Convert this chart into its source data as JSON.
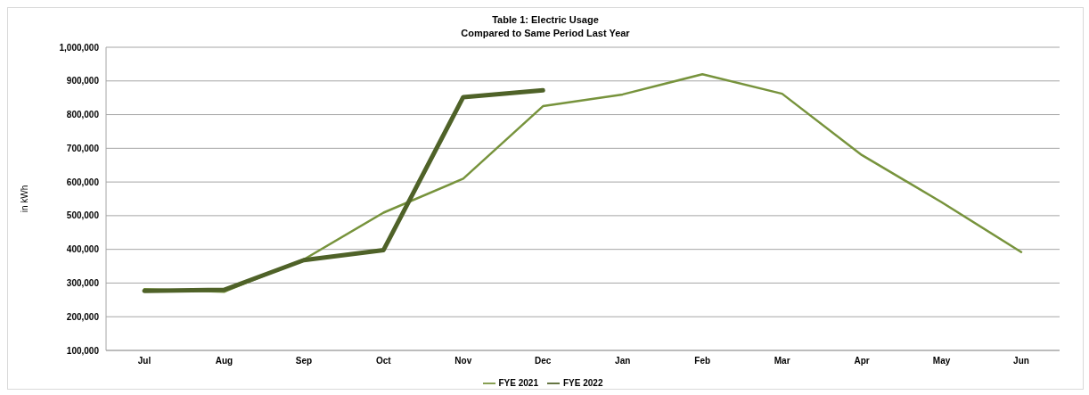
{
  "chart_data": {
    "type": "line",
    "title": "Table 1: Electric Usage",
    "subtitle": "Compared to Same Period Last Year",
    "ylabel": "in kWh",
    "categories": [
      "Jul",
      "Aug",
      "Sep",
      "Oct",
      "Nov",
      "Dec",
      "Jan",
      "Feb",
      "Mar",
      "Apr",
      "May",
      "Jun"
    ],
    "series": [
      {
        "name": "FYE 2021",
        "color": "#77933c",
        "values": [
          282000,
          274000,
          370000,
          509000,
          610000,
          825000,
          860000,
          920000,
          862000,
          680000,
          540000,
          392000
        ]
      },
      {
        "name": "FYE 2022",
        "color": "#4f6228",
        "values": [
          277000,
          280000,
          368000,
          398000,
          852000,
          872000,
          null,
          null,
          null,
          null,
          null,
          null
        ]
      }
    ],
    "ylim": [
      100000,
      1000000
    ],
    "yticks": [
      {
        "value": 100000,
        "label": "100,000"
      },
      {
        "value": 200000,
        "label": "200,000"
      },
      {
        "value": 300000,
        "label": "300,000"
      },
      {
        "value": 400000,
        "label": "400,000"
      },
      {
        "value": 500000,
        "label": "500,000"
      },
      {
        "value": 600000,
        "label": "600,000"
      },
      {
        "value": 700000,
        "label": "700,000"
      },
      {
        "value": 800000,
        "label": "800,000"
      },
      {
        "value": 900000,
        "label": "900,000"
      },
      {
        "value": 1000000,
        "label": "1,000,000"
      }
    ],
    "grid": "y",
    "legend": "bottom",
    "marker": "none",
    "line_style": "solid"
  }
}
